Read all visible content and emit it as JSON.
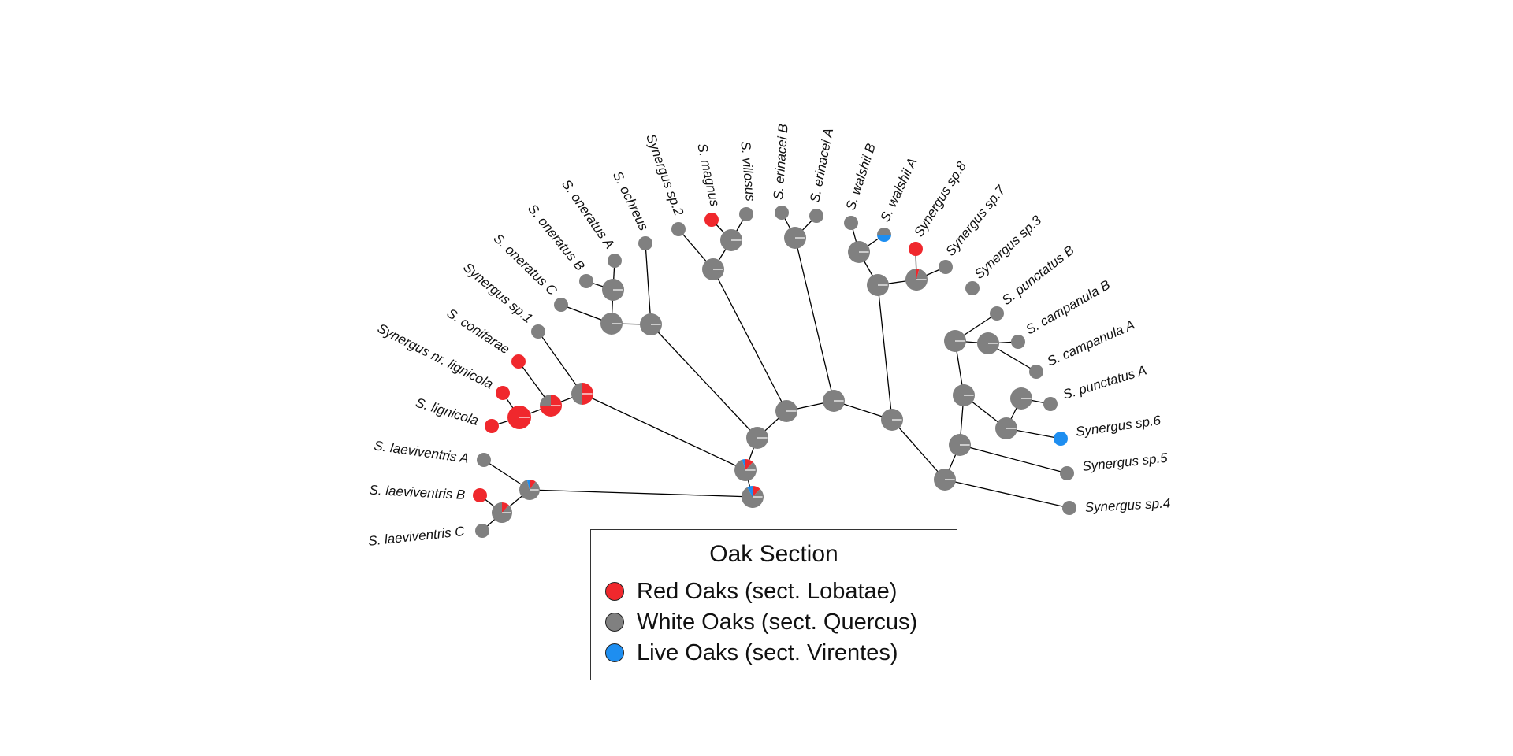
{
  "colors": {
    "red": "#f0282d",
    "white": "#808080",
    "live": "#1e8ef0",
    "branch": "#000000"
  },
  "legend": {
    "title": "Oak Section",
    "items": [
      {
        "label": "Red Oaks (sect. Lobatae)",
        "color": "#f0282d"
      },
      {
        "label": "White Oaks (sect. Quercus)",
        "color": "#808080"
      },
      {
        "label": "Live Oaks (sect. Virentes)",
        "color": "#1e8ef0"
      }
    ]
  },
  "tree": {
    "tips": [
      {
        "id": "laevC",
        "label": "S. laeviventris C",
        "state": "white"
      },
      {
        "id": "laevB",
        "label": "S. laeviventris B",
        "state": "red"
      },
      {
        "id": "laevA",
        "label": "S. laeviventris A",
        "state": "white"
      },
      {
        "id": "lign",
        "label": "S. lignicola",
        "state": "red"
      },
      {
        "id": "nrlign",
        "label": "Synergus nr. lignicola",
        "state": "red"
      },
      {
        "id": "conif",
        "label": "S. conifarae",
        "state": "red"
      },
      {
        "id": "sp1",
        "label": "Synergus sp.1",
        "state": "white"
      },
      {
        "id": "onerC",
        "label": "S. oneratus C",
        "state": "white"
      },
      {
        "id": "onerB",
        "label": "S. oneratus B",
        "state": "white"
      },
      {
        "id": "onerA",
        "label": "S. oneratus A",
        "state": "white"
      },
      {
        "id": "ochr",
        "label": "S. ochreus",
        "state": "white"
      },
      {
        "id": "sp2",
        "label": "Synergus sp.2",
        "state": "white"
      },
      {
        "id": "magn",
        "label": "S. magnus",
        "state": "red"
      },
      {
        "id": "vill",
        "label": "S. villosus",
        "state": "white"
      },
      {
        "id": "eriB",
        "label": "S. erinacei B",
        "state": "white"
      },
      {
        "id": "eriA",
        "label": "S. erinacei A",
        "state": "white"
      },
      {
        "id": "walB",
        "label": "S. walshii B",
        "state": "white"
      },
      {
        "id": "walA",
        "label": "S. walshii A",
        "state": "mixed"
      },
      {
        "id": "sp8",
        "label": "Synergus sp.8",
        "state": "red"
      },
      {
        "id": "sp7",
        "label": "Synergus sp.7",
        "state": "white"
      },
      {
        "id": "sp3",
        "label": "Synergus sp.3",
        "state": "white"
      },
      {
        "id": "puncB",
        "label": "S. punctatus B",
        "state": "white"
      },
      {
        "id": "campB",
        "label": "S. campanula B",
        "state": "white"
      },
      {
        "id": "campA",
        "label": "S. campanula A",
        "state": "white"
      },
      {
        "id": "puncA",
        "label": "S. punctatus A",
        "state": "white"
      },
      {
        "id": "sp6",
        "label": "Synergus sp.6",
        "state": "live"
      },
      {
        "id": "sp5",
        "label": "Synergus sp.5",
        "state": "white"
      },
      {
        "id": "sp4",
        "label": "Synergus sp.4",
        "state": "white"
      }
    ]
  }
}
